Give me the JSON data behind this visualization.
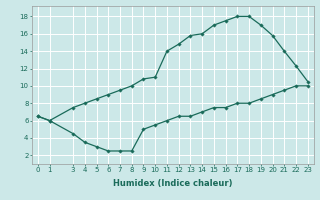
{
  "xlabel": "Humidex (Indice chaleur)",
  "bg_color": "#cce8e8",
  "line_color": "#1a6b5a",
  "grid_color": "#ffffff",
  "upper_curve": {
    "x": [
      0,
      1,
      3,
      4,
      5,
      6,
      7,
      8,
      9,
      10,
      11,
      12,
      13,
      14,
      15,
      16,
      17,
      18,
      19,
      20,
      21,
      22,
      23
    ],
    "y": [
      6.5,
      6.0,
      7.5,
      8.0,
      8.5,
      9.0,
      9.5,
      10.0,
      10.8,
      11.0,
      14.0,
      14.8,
      15.8,
      16.0,
      17.0,
      17.5,
      18.0,
      18.0,
      17.0,
      15.8,
      14.0,
      12.3,
      10.5
    ]
  },
  "lower_curve": {
    "x": [
      0,
      1,
      3,
      4,
      5,
      6,
      7,
      8,
      9,
      10,
      11,
      12,
      13,
      14,
      15,
      16,
      17,
      18,
      19,
      20,
      21,
      22,
      23
    ],
    "y": [
      6.5,
      6.0,
      4.5,
      3.5,
      3.0,
      2.5,
      2.5,
      2.5,
      5.0,
      5.5,
      6.0,
      6.5,
      6.5,
      7.0,
      7.5,
      7.5,
      8.0,
      8.0,
      8.5,
      9.0,
      9.5,
      10.0,
      10.0
    ]
  },
  "xlim": [
    -0.5,
    23.5
  ],
  "ylim": [
    1.0,
    19.2
  ],
  "xticks": [
    0,
    1,
    3,
    4,
    5,
    6,
    7,
    8,
    9,
    10,
    11,
    12,
    13,
    14,
    15,
    16,
    17,
    18,
    19,
    20,
    21,
    22,
    23
  ],
  "yticks": [
    2,
    4,
    6,
    8,
    10,
    12,
    14,
    16,
    18
  ],
  "fontsize_xlabel": 6,
  "fontsize_ticks": 5,
  "marker": "D",
  "markersize": 1.8,
  "linewidth": 0.9
}
